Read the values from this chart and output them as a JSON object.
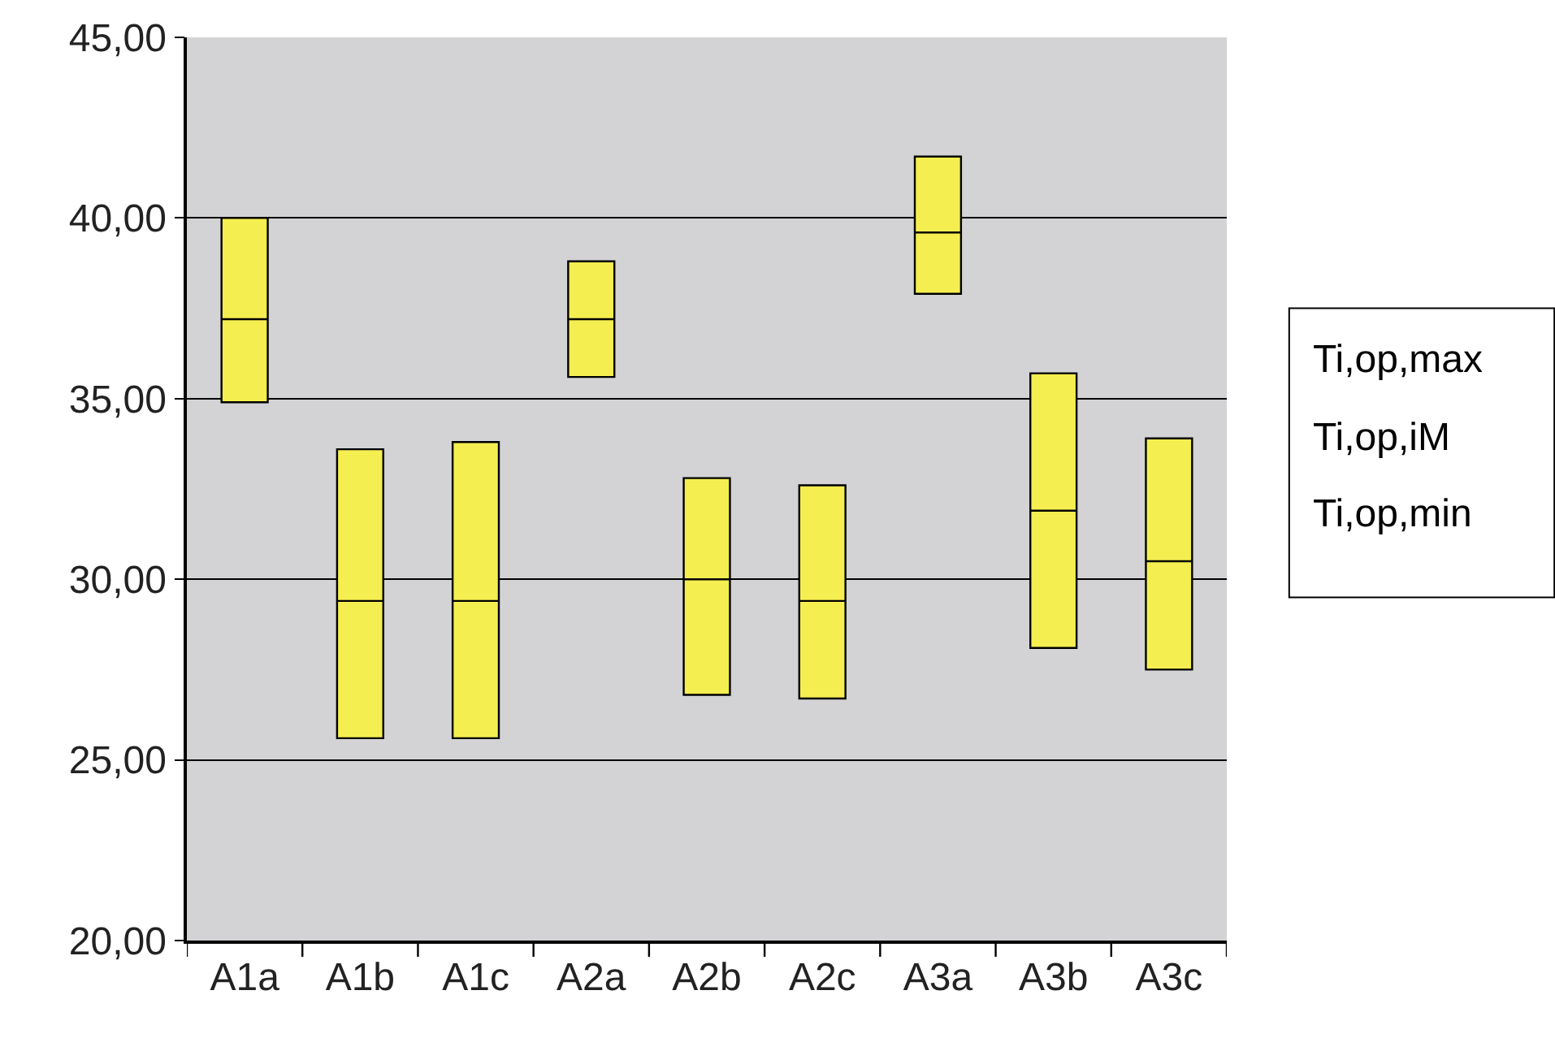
{
  "chart_data": {
    "type": "box",
    "categories": [
      "A1a",
      "A1b",
      "A1c",
      "A2a",
      "A2b",
      "A2c",
      "A3a",
      "A3b",
      "A3c"
    ],
    "boxes": [
      {
        "low": 34.9,
        "q1": 34.9,
        "median": 37.2,
        "q3": 40.0,
        "high": 40.0
      },
      {
        "low": 25.6,
        "q1": 25.6,
        "median": 29.4,
        "q3": 33.6,
        "high": 33.6
      },
      {
        "low": 25.6,
        "q1": 25.6,
        "median": 29.4,
        "q3": 33.8,
        "high": 33.8
      },
      {
        "low": 35.6,
        "q1": 35.6,
        "median": 37.2,
        "q3": 38.8,
        "high": 38.8
      },
      {
        "low": 26.8,
        "q1": 26.8,
        "median": 30.0,
        "q3": 32.8,
        "high": 32.8
      },
      {
        "low": 26.7,
        "q1": 26.7,
        "median": 29.4,
        "q3": 32.6,
        "high": 32.6
      },
      {
        "low": 37.9,
        "q1": 37.9,
        "median": 39.6,
        "q3": 41.7,
        "high": 41.7
      },
      {
        "low": 28.1,
        "q1": 28.1,
        "median": 31.9,
        "q3": 35.7,
        "high": 35.7
      },
      {
        "low": 27.5,
        "q1": 27.5,
        "median": 30.5,
        "q3": 33.9,
        "high": 33.9
      }
    ],
    "color": "#f5ee50",
    "ylim": [
      20,
      45
    ],
    "yticks": [
      {
        "value": 20,
        "label": "20,00"
      },
      {
        "value": 25,
        "label": "25,00"
      },
      {
        "value": 30,
        "label": "30,00"
      },
      {
        "value": 35,
        "label": "35,00"
      },
      {
        "value": 40,
        "label": "40,00"
      },
      {
        "value": 45,
        "label": "45,00"
      }
    ],
    "grid": "y",
    "annotations": [
      "Ti,op,max",
      "Ti,op,iM",
      "Ti,op,min"
    ]
  }
}
